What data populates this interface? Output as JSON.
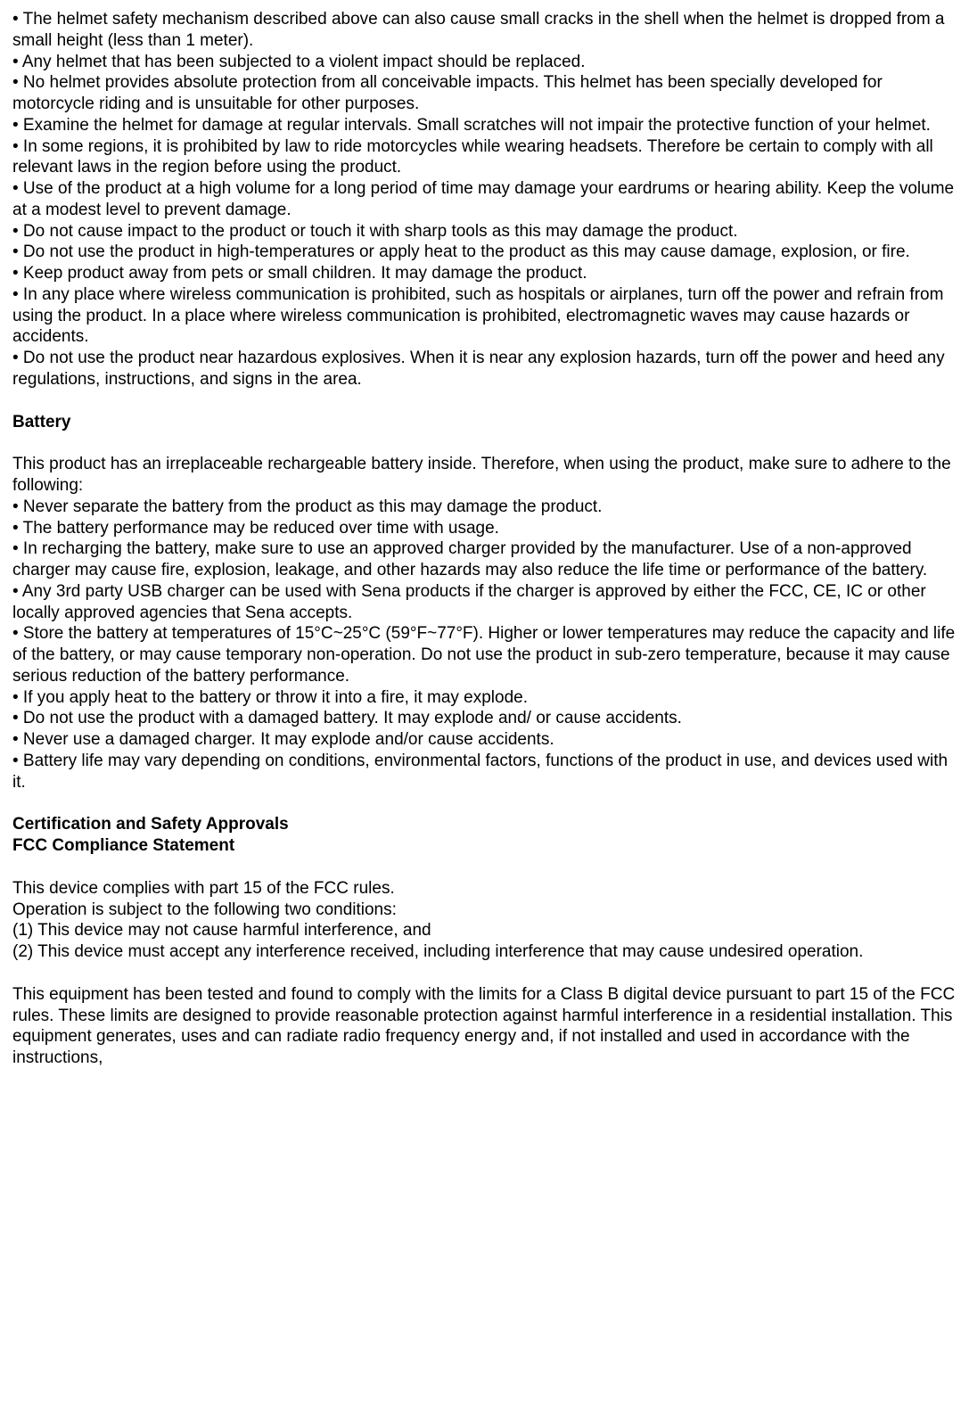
{
  "section1": {
    "bullets": [
      "• The helmet safety mechanism described above can also cause small cracks in the shell when the helmet is dropped from a small height (less than 1 meter).",
      "• Any helmet that has been subjected to a violent impact should be replaced.",
      "• No helmet provides absolute protection from all conceivable impacts. This helmet has been specially developed for motorcycle riding and is unsuitable for other purposes.",
      "• Examine the helmet for damage at regular intervals. Small scratches will not impair the protective function of your helmet.",
      "• In some regions, it is prohibited by law to ride motorcycles while wearing headsets. Therefore be certain to comply with all relevant laws in the region before using the product.",
      "• Use of the product at a high volume for a long period of time may damage your eardrums or hearing ability. Keep the volume at a modest level to prevent damage.",
      "• Do not cause impact to the product or touch it with sharp tools as this may damage the product.",
      "• Do not use the product in high-temperatures or apply heat to the product as this may cause damage, explosion, or fire.",
      "• Keep product away from pets or small children. It may damage the product.",
      "• In any place where wireless communication is prohibited, such as hospitals or airplanes, turn off the power and refrain from using the product. In a place where wireless communication is prohibited, electromagnetic waves may cause hazards or accidents.",
      "• Do not use the product near hazardous explosives. When it is near any explosion hazards, turn off the power and heed any regulations, instructions, and signs in the area."
    ]
  },
  "section2": {
    "heading": "Battery",
    "intro": "This product has an irreplaceable rechargeable battery inside. Therefore, when using the product, make sure to adhere to the following:",
    "bullets": [
      "• Never separate the battery from the product as this may damage the product.",
      "• The battery performance may be reduced over time with usage.",
      "• In recharging the battery, make sure to use an approved charger provided by the manufacturer. Use of a non-approved charger may cause fire, explosion, leakage, and other hazards may also reduce the life time or performance of the battery.",
      "• Any 3rd party USB charger can be used with Sena products if the charger is approved by either the FCC, CE, IC or other locally approved agencies that Sena accepts.",
      "• Store the battery at temperatures of 15°C~25°C (59°F~77°F). Higher or lower temperatures may reduce the capacity and life of the battery, or may cause temporary non-operation. Do not use the product in sub-zero temperature, because it may cause serious reduction of the battery performance.",
      "• If you apply heat to the battery or throw it into a fire, it may explode.",
      "• Do not use the product with a damaged battery. It may explode and/ or cause accidents.",
      "• Never use a damaged charger. It may explode and/or cause accidents.",
      "• Battery life may vary depending on conditions, environmental factors, functions of the product in use, and devices used with it."
    ]
  },
  "section3": {
    "heading1": "Certification and Safety Approvals",
    "heading2": "FCC Compliance Statement",
    "paragraphs1": [
      "This device complies with part 15 of the FCC rules.",
      "Operation is subject to the following two conditions:",
      "(1) This device may not cause harmful interference, and",
      "(2) This device must accept any interference received, including interference that may cause undesired operation."
    ],
    "paragraph2": "This equipment has been tested and found to comply with the limits for a Class B digital device pursuant to part 15 of the FCC rules. These limits are designed to provide reasonable protection against harmful interference in a residential installation. This equipment generates, uses and can radiate radio frequency energy and, if not installed and used in accordance with the instructions,"
  }
}
